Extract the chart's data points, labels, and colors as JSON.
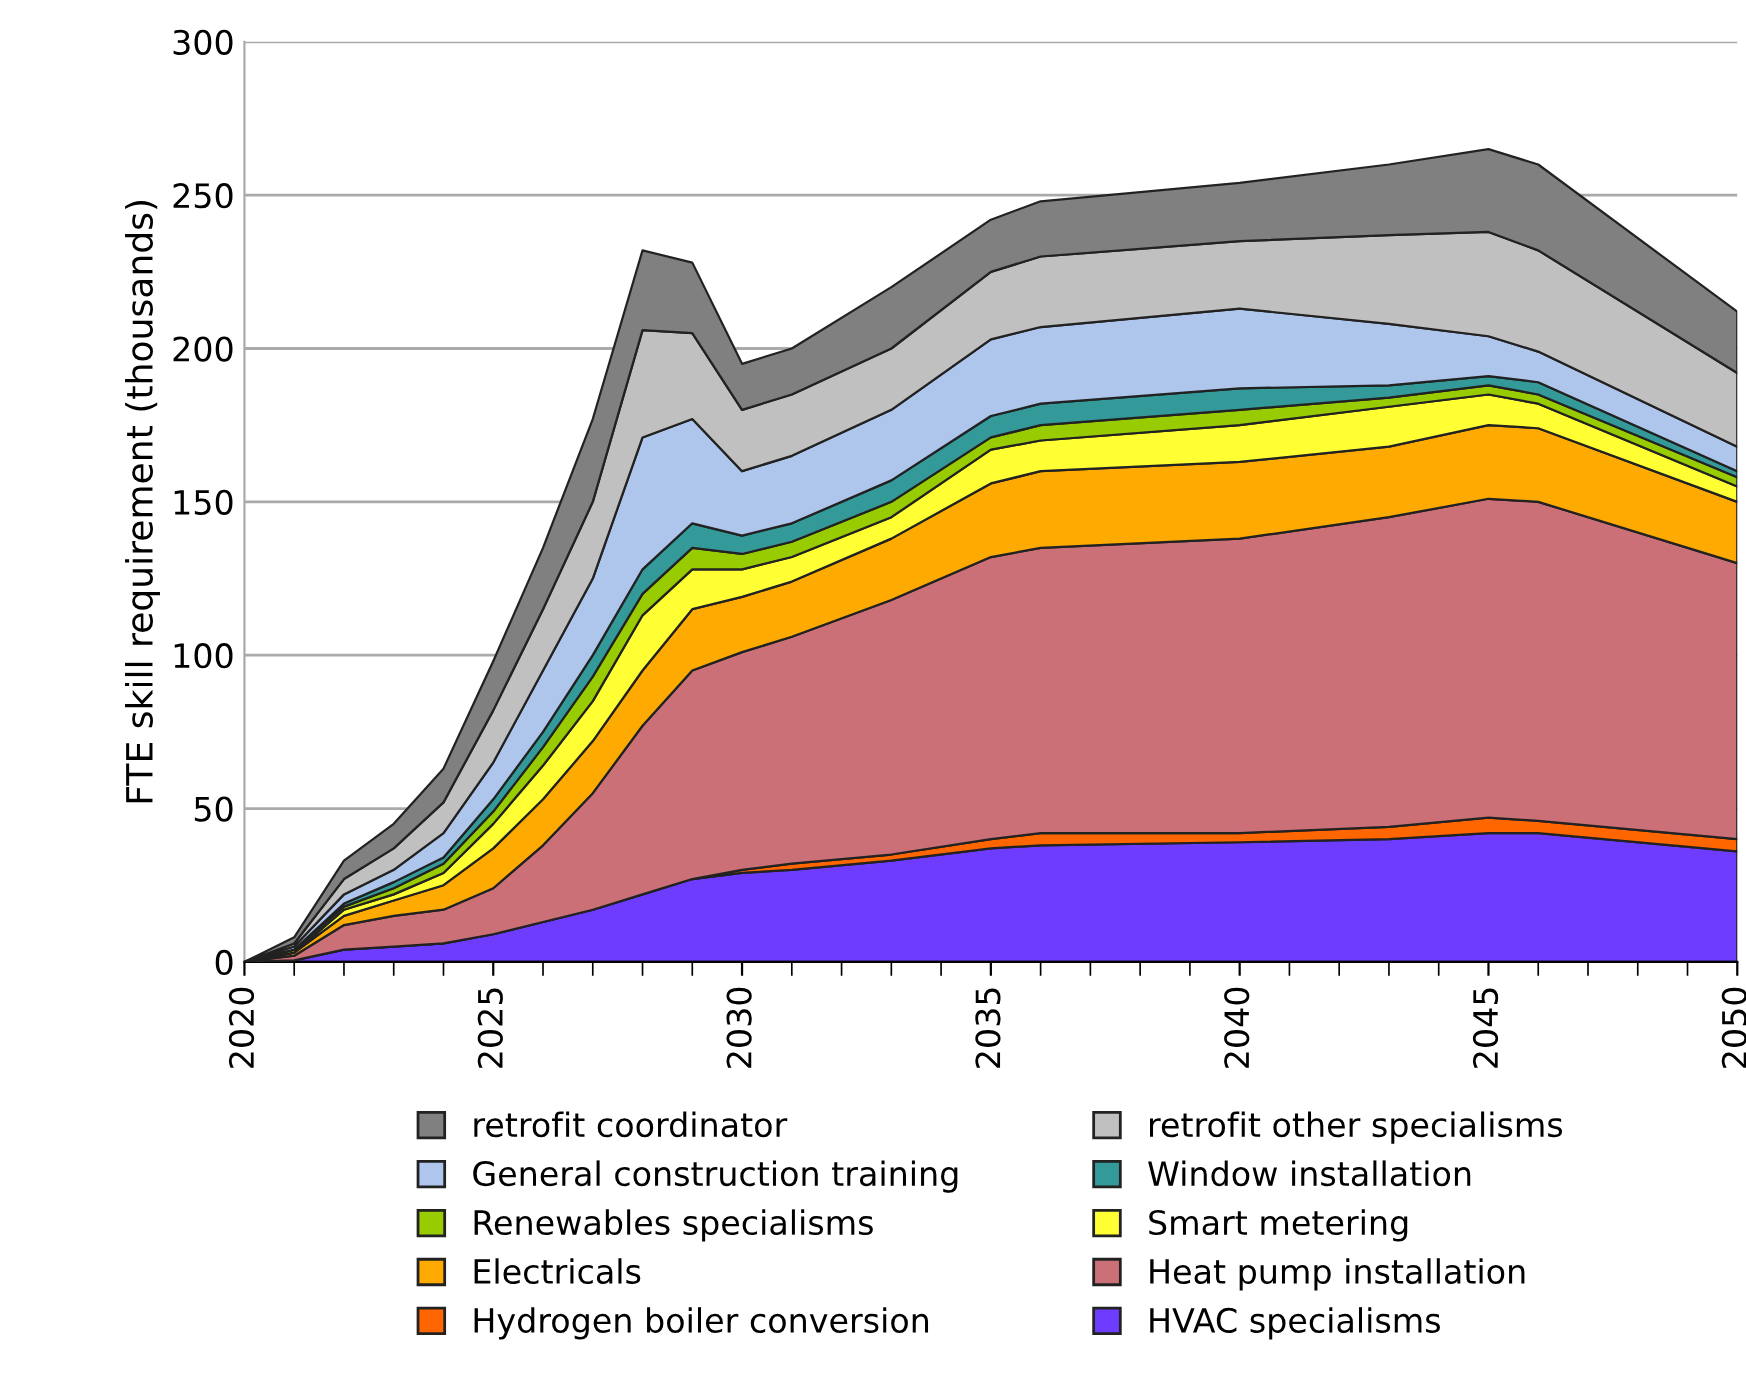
{
  "chart_data": {
    "type": "area",
    "stacked": true,
    "ylabel": "FTE skill requirement (thousands)",
    "x": [
      2020,
      2021,
      2022,
      2023,
      2024,
      2025,
      2026,
      2027,
      2028,
      2029,
      2030,
      2031,
      2033,
      2035,
      2036,
      2040,
      2043,
      2045,
      2046,
      2050
    ],
    "xlim": [
      2020,
      2050
    ],
    "xticks": [
      2020,
      2025,
      2030,
      2035,
      2040,
      2045,
      2050
    ],
    "ylim": [
      0,
      300
    ],
    "yticks": [
      0,
      50,
      100,
      150,
      200,
      250,
      300
    ],
    "grid": "y",
    "legend": "bottom",
    "series": [
      {
        "name": "HVAC specialisms",
        "color": "#6e3cff",
        "values": [
          0,
          0.5,
          4,
          5,
          6,
          9,
          13,
          17,
          22,
          27,
          29,
          30,
          33,
          37,
          38,
          39,
          40,
          42,
          42,
          36
        ]
      },
      {
        "name": "Hydrogen boiler conversion",
        "color": "#ff6600",
        "values": [
          0,
          0,
          0,
          0,
          0,
          0,
          0,
          0,
          0,
          0,
          1,
          2,
          2,
          3,
          4,
          3,
          4,
          5,
          4,
          4
        ]
      },
      {
        "name": "Heat pump installation",
        "color": "#cc7077",
        "values": [
          0,
          1.5,
          8,
          10,
          11,
          15,
          25,
          38,
          55,
          68,
          71,
          74,
          83,
          92,
          93,
          96,
          101,
          104,
          104,
          90
        ]
      },
      {
        "name": "Electricals",
        "color": "#ffaa00",
        "values": [
          0,
          1,
          3,
          5,
          8,
          13,
          15,
          17,
          18,
          20,
          18,
          18,
          20,
          24,
          25,
          25,
          23,
          24,
          24,
          20
        ]
      },
      {
        "name": "Smart metering",
        "color": "#ffff33",
        "values": [
          0,
          0,
          2,
          2,
          4,
          8,
          11,
          13,
          18,
          13,
          9,
          8,
          7,
          11,
          10,
          12,
          13,
          10,
          8,
          5
        ]
      },
      {
        "name": "Renewables specialisms",
        "color": "#99cc00",
        "values": [
          0,
          1,
          1,
          2,
          3,
          4,
          6,
          8,
          7,
          7,
          5,
          5,
          5,
          4,
          5,
          5,
          3,
          3,
          3,
          3
        ]
      },
      {
        "name": "Window installation",
        "color": "#339999",
        "values": [
          0,
          0,
          1,
          2,
          2,
          4,
          5,
          7,
          8,
          8,
          6,
          6,
          7,
          7,
          7,
          7,
          4,
          3,
          4,
          2
        ]
      },
      {
        "name": "General construction training",
        "color": "#aec6ec",
        "values": [
          0,
          1,
          3,
          4,
          8,
          12,
          20,
          25,
          43,
          34,
          21,
          22,
          23,
          25,
          25,
          26,
          20,
          13,
          10,
          8
        ]
      },
      {
        "name": "retrofit other specialisms",
        "color": "#c0c0c0",
        "values": [
          0,
          1,
          5,
          7,
          10,
          17,
          20,
          25,
          35,
          28,
          20,
          20,
          20,
          22,
          23,
          22,
          29,
          34,
          33,
          24
        ]
      },
      {
        "name": "retrofit coordinator",
        "color": "#808080",
        "values": [
          0,
          2,
          6,
          8,
          11,
          16,
          20,
          27,
          26,
          23,
          15,
          15,
          20,
          17,
          18,
          19,
          23,
          27,
          28,
          20
        ]
      }
    ]
  }
}
